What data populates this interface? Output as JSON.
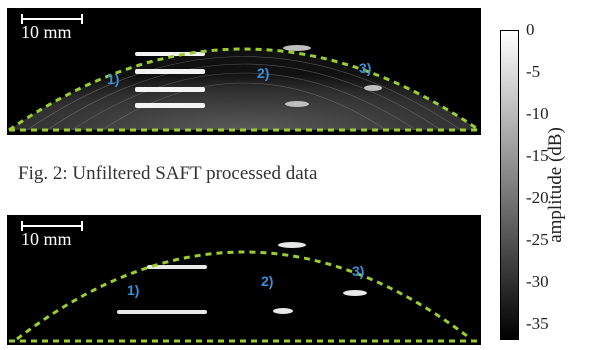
{
  "figure": {
    "scale_bar_label": "10 mm",
    "caption": "Fig. 2: Unfiltered SAFT processed data",
    "regions": [
      "1)",
      "2)",
      "3)"
    ],
    "outline_color": "#9acd32",
    "region_label_color": "#3a8fd6"
  },
  "colorbar": {
    "label": "amplitude (dB)",
    "ticks": [
      "0",
      "-5",
      "-10",
      "-15",
      "-20",
      "-25",
      "-30",
      "-35"
    ],
    "range": [
      -35,
      0
    ]
  }
}
